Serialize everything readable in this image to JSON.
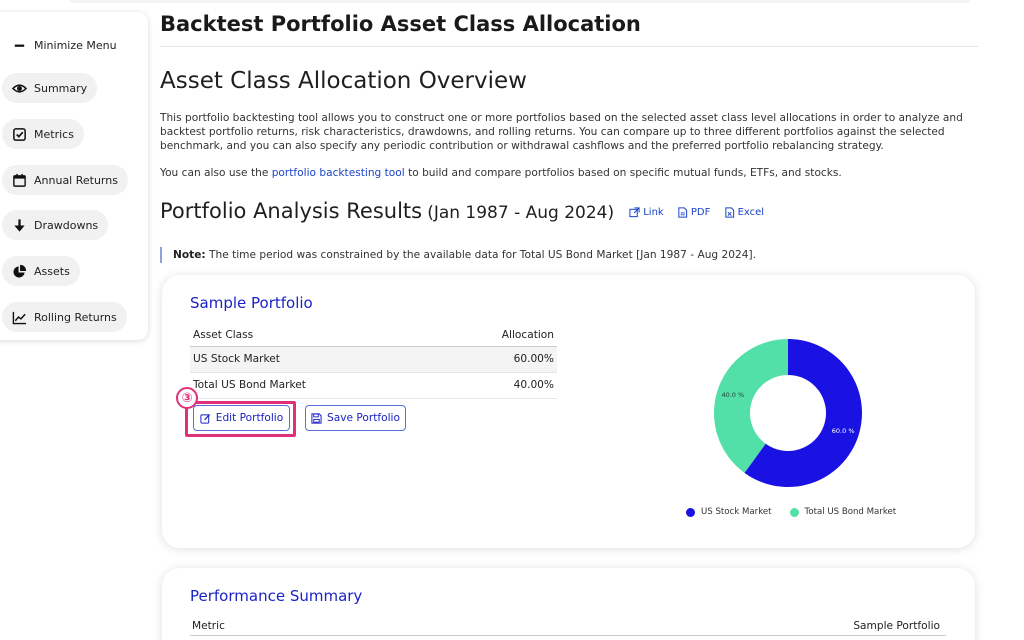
{
  "sidebar": {
    "items": [
      {
        "label": "Minimize Menu",
        "icon": "minus-icon"
      },
      {
        "label": "Summary",
        "icon": "eye-icon"
      },
      {
        "label": "Metrics",
        "icon": "checkbox-icon"
      },
      {
        "label": "Annual Returns",
        "icon": "calendar-icon"
      },
      {
        "label": "Drawdowns",
        "icon": "arrow-down-icon"
      },
      {
        "label": "Assets",
        "icon": "pie-icon"
      },
      {
        "label": "Rolling Returns",
        "icon": "line-chart-icon"
      }
    ]
  },
  "page_title": "Backtest Portfolio Asset Class Allocation",
  "overview_heading": "Asset Class Allocation Overview",
  "paragraph1": "This portfolio backtesting tool allows you to construct one or more portfolios based on the selected asset class level allocations in order to analyze and backtest portfolio returns, risk characteristics, drawdowns, and rolling returns. You can compare up to three different portfolios against the selected benchmark, and you can also specify any periodic contribution or withdrawal cashflows and the preferred portfolio rebalancing strategy.",
  "paragraph2": {
    "before": "You can also use the ",
    "link": "portfolio backtesting tool",
    "after": " to build and compare portfolios based on specific mutual funds, ETFs, and stocks."
  },
  "results": {
    "heading": "Portfolio Analysis Results",
    "range": "(Jan 1987 - Aug 2024)",
    "link_label": "Link",
    "pdf_label": "PDF",
    "excel_label": "Excel"
  },
  "note": {
    "label": "Note:",
    "text": " The time period was constrained by the available data for Total US Bond Market [Jan 1987 - Aug 2024]."
  },
  "portfolio": {
    "title": "Sample Portfolio",
    "col_asset": "Asset Class",
    "col_alloc": "Allocation",
    "rows": [
      {
        "asset": "US Stock Market",
        "alloc": "60.00%"
      },
      {
        "asset": "Total US Bond Market",
        "alloc": "40.00%"
      }
    ],
    "edit_label": "Edit Portfolio",
    "save_label": "Save Portfolio",
    "step_marker": "③"
  },
  "colors": {
    "stock": "#1a12e3",
    "bond": "#52dfa8"
  },
  "chart_data": {
    "type": "pie",
    "categories": [
      "US Stock Market",
      "Total US Bond Market"
    ],
    "values": [
      60.0,
      40.0
    ],
    "data_labels": [
      "60.0 %",
      "40.0 %"
    ],
    "legend": "bottom"
  },
  "performance": {
    "title": "Performance Summary",
    "col_metric": "Metric",
    "col_portfolio": "Sample Portfolio"
  }
}
